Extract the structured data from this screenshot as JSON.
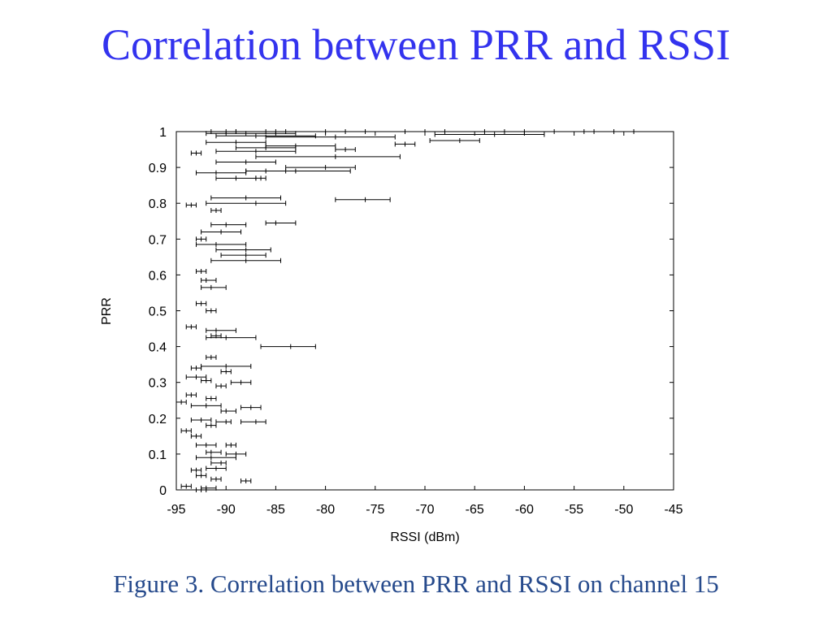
{
  "slide": {
    "title": "Correlation between PRR and RSSI",
    "caption": "Figure 3. Correlation between PRR and RSSI on channel 15",
    "title_color": "#3333ee",
    "caption_color": "#264a8c"
  },
  "chart_data": {
    "type": "scatter",
    "title": "",
    "xlabel": "RSSI (dBm)",
    "ylabel": "PRR",
    "xlim": [
      -95,
      -45
    ],
    "ylim": [
      0,
      1
    ],
    "xticks": [
      -95,
      -90,
      -85,
      -80,
      -75,
      -70,
      -65,
      -60,
      -55,
      -50,
      -45
    ],
    "yticks": [
      0,
      0.1,
      0.2,
      0.3,
      0.4,
      0.5,
      0.6,
      0.7,
      0.8,
      0.9,
      1
    ],
    "xtick_labels": [
      "-95",
      "-90",
      "-85",
      "-80",
      "-75",
      "-70",
      "-65",
      "-60",
      "-55",
      "-50",
      "-45"
    ],
    "ytick_labels": [
      "0",
      "0.1",
      "0.2",
      "0.3",
      "0.4",
      "0.5",
      "0.6",
      "0.7",
      "0.8",
      "0.9",
      "1"
    ],
    "grid": false,
    "error_bars": "horizontal",
    "points_format": "[x_min, x_mean, x_max, prr]",
    "points": [
      [
        -91.5,
        -90.0,
        -89.0,
        1.0
      ],
      [
        -89.0,
        -86.0,
        -84.0,
        1.0
      ],
      [
        -85.0,
        -80.0,
        -76.0,
        1.0
      ],
      [
        -78.0,
        -72.0,
        -68.0,
        1.0
      ],
      [
        -70.0,
        -64.0,
        -60.0,
        1.0
      ],
      [
        -62.0,
        -57.0,
        -53.0,
        1.0
      ],
      [
        -54.0,
        -51.0,
        -49.0,
        1.0
      ],
      [
        -92.0,
        -88.0,
        -83.0,
        0.995
      ],
      [
        -69.0,
        -63.0,
        -58.0,
        0.992
      ],
      [
        -91.0,
        -87.0,
        -81.0,
        0.988
      ],
      [
        -86.0,
        -79.0,
        -73.0,
        0.985
      ],
      [
        -69.5,
        -66.5,
        -64.5,
        0.975
      ],
      [
        -73.0,
        -72.0,
        -71.0,
        0.965
      ],
      [
        -92.0,
        -89.0,
        -86.0,
        0.97
      ],
      [
        -86.0,
        -83.0,
        -79.0,
        0.96
      ],
      [
        -89.0,
        -86.0,
        -83.0,
        0.955
      ],
      [
        -93.5,
        -93.0,
        -92.5,
        0.94
      ],
      [
        -91.0,
        -87.0,
        -83.0,
        0.945
      ],
      [
        -87.0,
        -79.0,
        -72.5,
        0.93
      ],
      [
        -79.0,
        -78.0,
        -77.0,
        0.95
      ],
      [
        -91.0,
        -88.0,
        -85.0,
        0.915
      ],
      [
        -84.0,
        -80.0,
        -77.0,
        0.9
      ],
      [
        -88.0,
        -83.0,
        -77.5,
        0.89
      ],
      [
        -93.0,
        -91.0,
        -88.0,
        0.885
      ],
      [
        -88.0,
        -86.0,
        -84.0,
        0.89
      ],
      [
        -91.0,
        -89.0,
        -87.0,
        0.87
      ],
      [
        -87.0,
        -86.5,
        -86.0,
        0.87
      ],
      [
        -91.5,
        -88.0,
        -84.5,
        0.815
      ],
      [
        -92.0,
        -87.0,
        -84.0,
        0.8
      ],
      [
        -79.0,
        -76.0,
        -73.5,
        0.81
      ],
      [
        -94.0,
        -93.5,
        -93.0,
        0.795
      ],
      [
        -91.5,
        -91.0,
        -90.5,
        0.78
      ],
      [
        -91.5,
        -90.0,
        -88.0,
        0.74
      ],
      [
        -86.0,
        -85.0,
        -83.0,
        0.745
      ],
      [
        -92.5,
        -90.5,
        -88.5,
        0.72
      ],
      [
        -93.0,
        -92.5,
        -92.0,
        0.7
      ],
      [
        -93.0,
        -91.0,
        -88.0,
        0.685
      ],
      [
        -91.0,
        -88.0,
        -85.5,
        0.67
      ],
      [
        -90.5,
        -88.0,
        -86.0,
        0.655
      ],
      [
        -91.5,
        -88.0,
        -84.5,
        0.64
      ],
      [
        -93.0,
        -92.5,
        -92.0,
        0.61
      ],
      [
        -92.5,
        -92.0,
        -91.0,
        0.585
      ],
      [
        -92.5,
        -91.5,
        -90.0,
        0.565
      ],
      [
        -93.0,
        -92.5,
        -92.0,
        0.52
      ],
      [
        -92.0,
        -91.5,
        -91.0,
        0.5
      ],
      [
        -94.0,
        -93.5,
        -93.0,
        0.455
      ],
      [
        -92.0,
        -91.0,
        -89.0,
        0.445
      ],
      [
        -91.5,
        -91.0,
        -90.5,
        0.43
      ],
      [
        -92.0,
        -90.0,
        -87.0,
        0.425
      ],
      [
        -86.5,
        -83.5,
        -81.0,
        0.4
      ],
      [
        -92.0,
        -91.5,
        -91.0,
        0.37
      ],
      [
        -92.5,
        -90.0,
        -87.5,
        0.345
      ],
      [
        -93.5,
        -93.0,
        -92.5,
        0.34
      ],
      [
        -90.5,
        -90.0,
        -89.5,
        0.33
      ],
      [
        -94.0,
        -93.0,
        -92.0,
        0.315
      ],
      [
        -92.5,
        -92.0,
        -91.5,
        0.305
      ],
      [
        -89.5,
        -88.5,
        -87.5,
        0.3
      ],
      [
        -91.0,
        -90.5,
        -90.0,
        0.29
      ],
      [
        -94.0,
        -93.5,
        -93.0,
        0.265
      ],
      [
        -92.0,
        -91.5,
        -91.0,
        0.255
      ],
      [
        -95.0,
        -94.5,
        -94.0,
        0.245
      ],
      [
        -93.5,
        -92.0,
        -90.5,
        0.235
      ],
      [
        -88.5,
        -87.5,
        -86.5,
        0.23
      ],
      [
        -90.5,
        -90.0,
        -89.0,
        0.22
      ],
      [
        -93.5,
        -92.5,
        -91.5,
        0.195
      ],
      [
        -88.5,
        -87.0,
        -86.0,
        0.19
      ],
      [
        -91.0,
        -90.0,
        -89.5,
        0.19
      ],
      [
        -92.0,
        -91.5,
        -91.0,
        0.18
      ],
      [
        -94.5,
        -94.0,
        -93.5,
        0.165
      ],
      [
        -93.5,
        -93.0,
        -92.5,
        0.15
      ],
      [
        -93.0,
        -92.0,
        -91.0,
        0.125
      ],
      [
        -90.0,
        -89.5,
        -89.0,
        0.125
      ],
      [
        -92.0,
        -91.5,
        -90.5,
        0.105
      ],
      [
        -90.0,
        -89.0,
        -88.0,
        0.1
      ],
      [
        -93.0,
        -91.5,
        -89.0,
        0.09
      ],
      [
        -91.5,
        -90.5,
        -90.0,
        0.075
      ],
      [
        -93.5,
        -93.0,
        -92.5,
        0.055
      ],
      [
        -92.0,
        -91.0,
        -90.0,
        0.06
      ],
      [
        -93.0,
        -92.5,
        -92.0,
        0.04
      ],
      [
        -91.5,
        -91.0,
        -90.5,
        0.03
      ],
      [
        -88.5,
        -88.0,
        -87.5,
        0.025
      ],
      [
        -94.5,
        -94.0,
        -93.5,
        0.01
      ],
      [
        -92.5,
        -92.0,
        -91.0,
        0.005
      ],
      [
        -93.0,
        -92.5,
        -92.0,
        0.0
      ]
    ]
  }
}
